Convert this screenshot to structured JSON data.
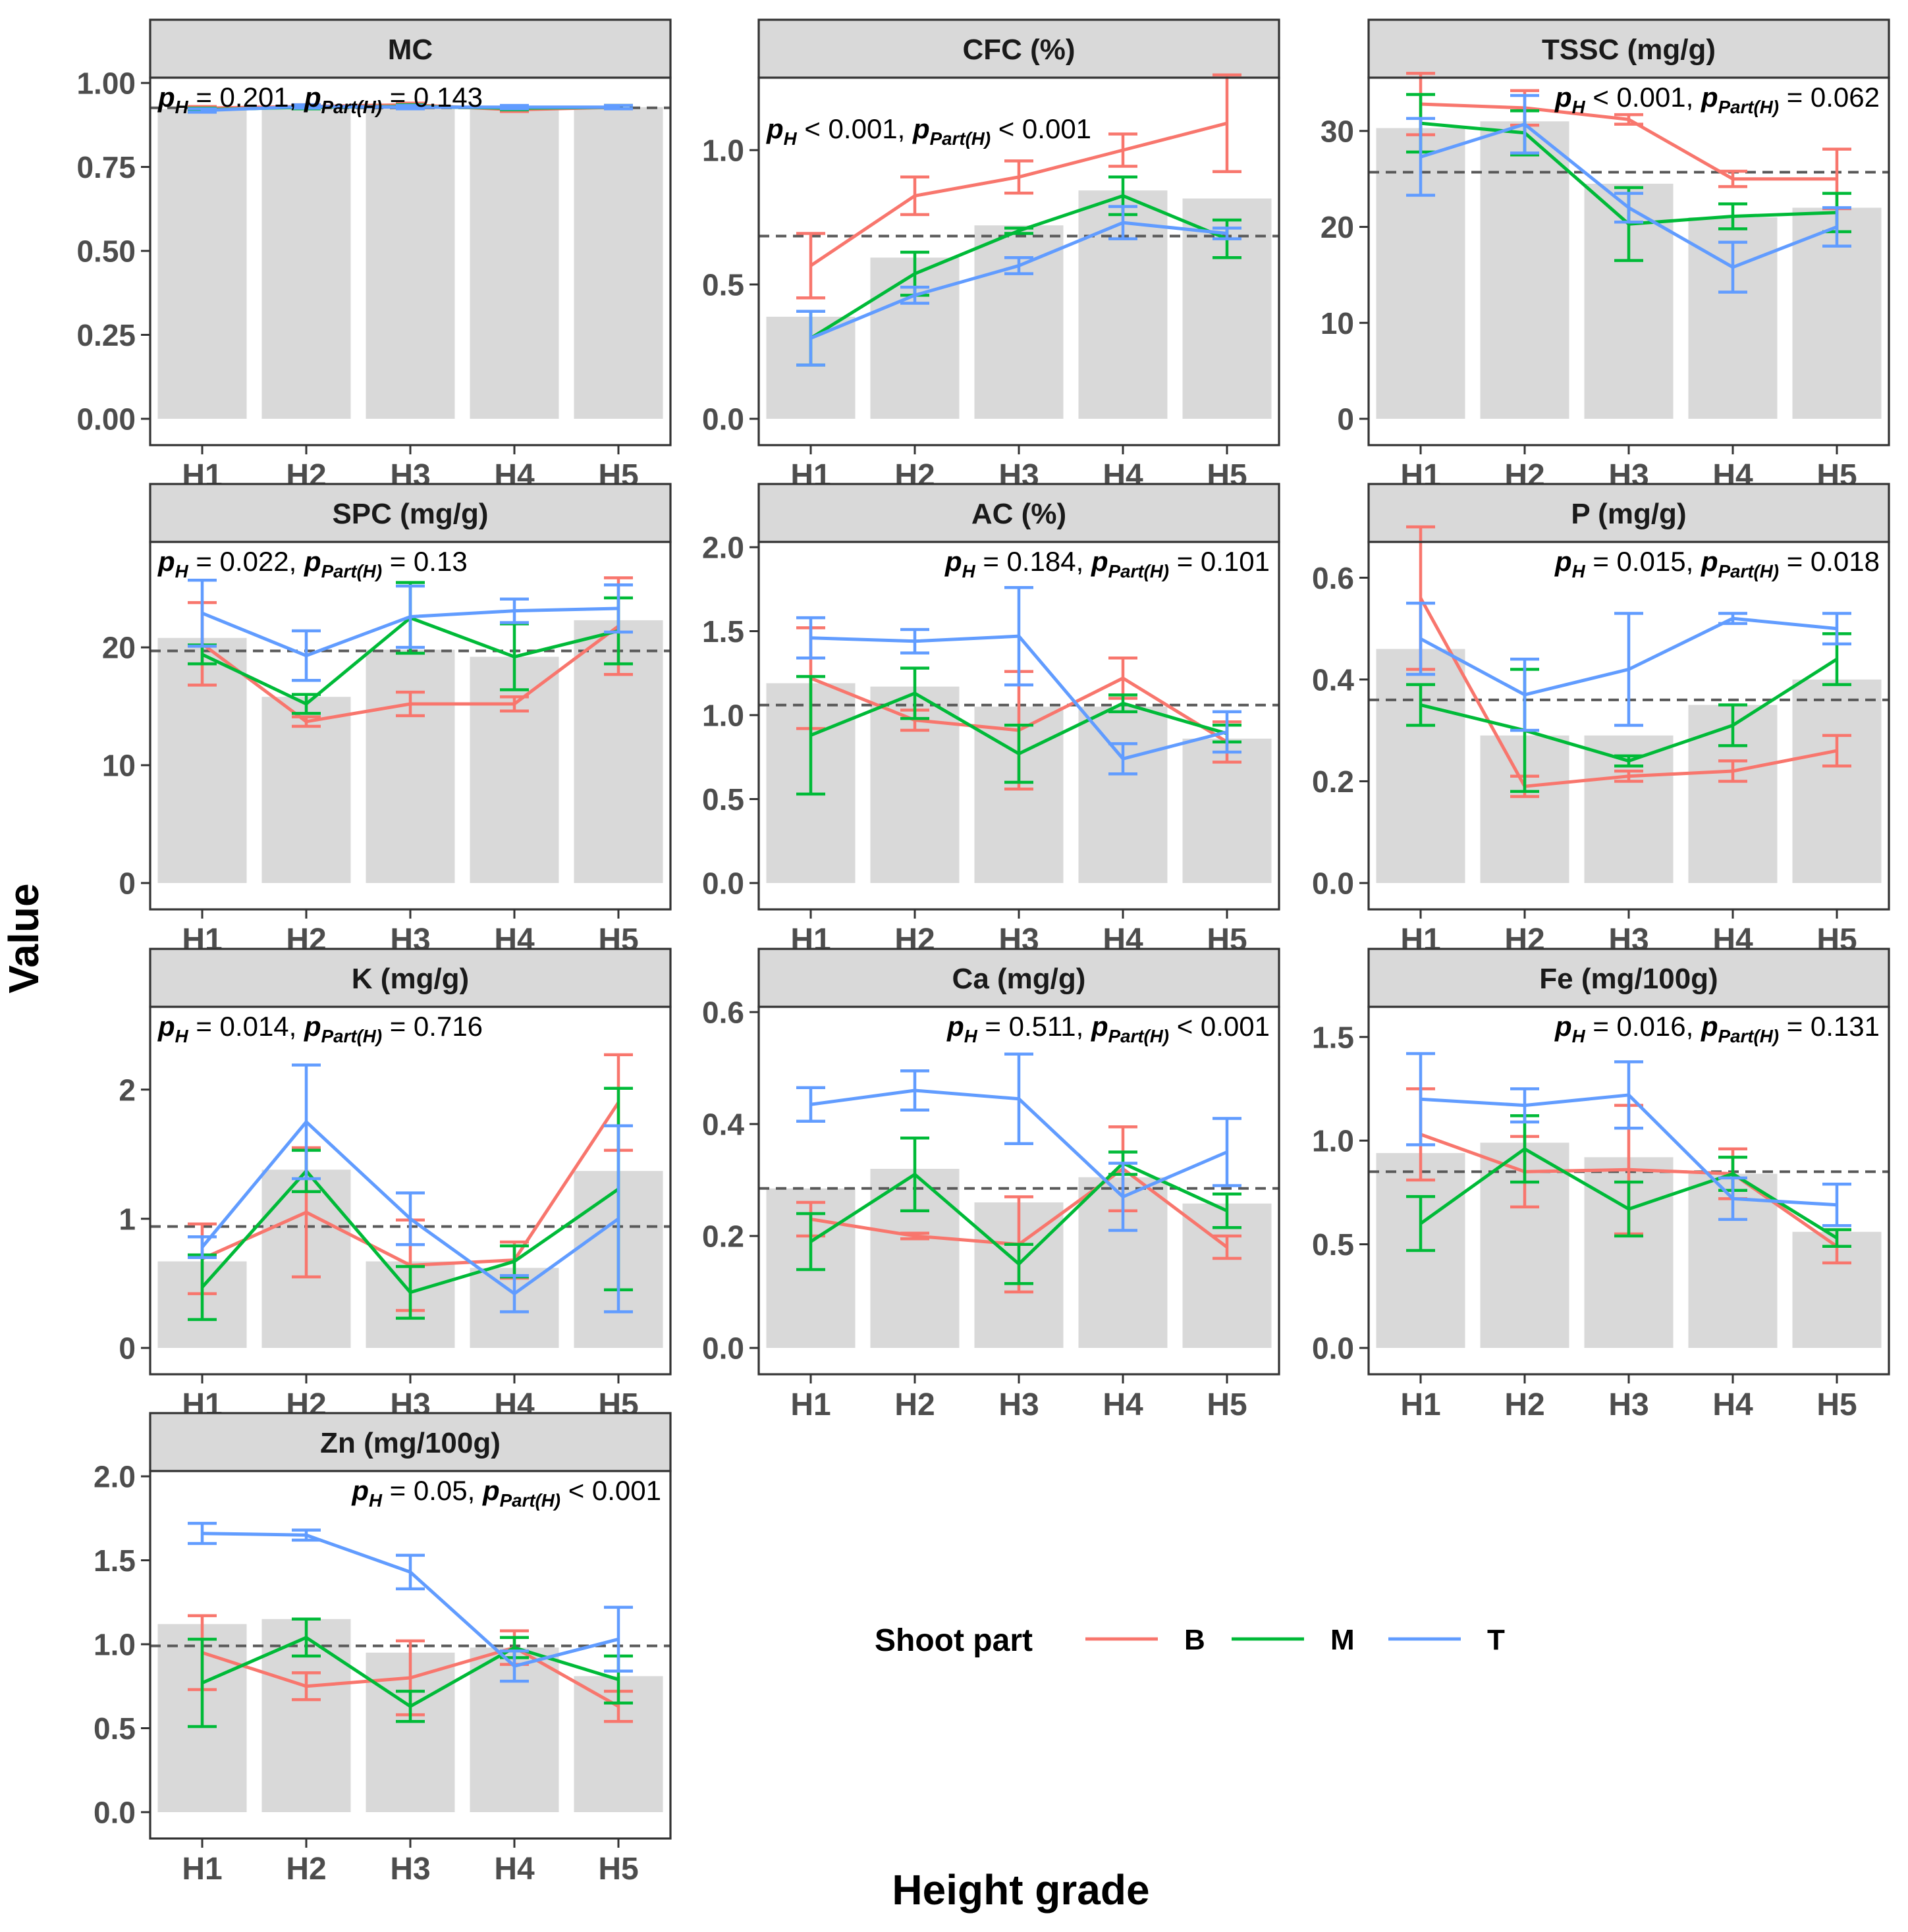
{
  "figure": {
    "xlabel": "Height grade",
    "ylabel": "Value"
  },
  "legend": {
    "title": "Shoot part",
    "entries": [
      {
        "label": "B",
        "color": "#F8766D"
      },
      {
        "label": "M",
        "color": "#00BA38"
      },
      {
        "label": "T",
        "color": "#619CFF"
      }
    ]
  },
  "colors": {
    "bar": "#D9D9D9",
    "strip_bg": "#D9D9D9",
    "mean_line": "#595959",
    "B": "#F8766D",
    "M": "#00BA38",
    "T": "#619CFF"
  },
  "chart_data": [
    {
      "type": "bar+line",
      "title": "MC",
      "categories": [
        "H1",
        "H2",
        "H3",
        "H4",
        "H5"
      ],
      "ylim": [
        0,
        1.0
      ],
      "yticks": [
        "0.00",
        "0.25",
        "0.50",
        "0.75",
        "1.00"
      ],
      "ytick_values": [
        0,
        0.25,
        0.5,
        0.75,
        1.0
      ],
      "bars": [
        0.922,
        0.928,
        0.93,
        0.922,
        0.928
      ],
      "mean_line": 0.926,
      "annotation": {
        "pH": "= 0.201",
        "pPart": "= 0.143",
        "position": "top-left"
      },
      "series": [
        {
          "name": "B",
          "values": [
            0.925,
            0.93,
            0.935,
            0.92,
            0.928
          ],
          "errors": [
            0.005,
            0.005,
            0.005,
            0.005,
            0.005
          ]
        },
        {
          "name": "M",
          "values": [
            0.92,
            0.928,
            0.93,
            0.925,
            0.928
          ],
          "errors": [
            0.005,
            0.005,
            0.005,
            0.005,
            0.005
          ]
        },
        {
          "name": "T",
          "values": [
            0.918,
            0.93,
            0.928,
            0.928,
            0.928
          ],
          "errors": [
            0.005,
            0.005,
            0.005,
            0.005,
            0.005
          ]
        }
      ]
    },
    {
      "type": "bar+line",
      "title": "CFC (%)",
      "categories": [
        "H1",
        "H2",
        "H3",
        "H4",
        "H5"
      ],
      "ylim": [
        0,
        1.25
      ],
      "yticks": [
        "0.0",
        "0.5",
        "1.0"
      ],
      "ytick_values": [
        0,
        0.5,
        1.0
      ],
      "bars": [
        0.38,
        0.6,
        0.72,
        0.85,
        0.82
      ],
      "mean_line": 0.68,
      "annotation": {
        "pH": "< 0.001",
        "pPart": "< 0.001",
        "position": "top-left"
      },
      "series": [
        {
          "name": "B",
          "values": [
            0.57,
            0.83,
            0.9,
            1.0,
            1.1
          ],
          "errors": [
            0.12,
            0.07,
            0.06,
            0.06,
            0.18
          ]
        },
        {
          "name": "M",
          "values": [
            0.3,
            0.54,
            0.7,
            0.83,
            0.67
          ],
          "errors": [
            0.1,
            0.08,
            0.01,
            0.07,
            0.07
          ]
        },
        {
          "name": "T",
          "values": [
            0.3,
            0.46,
            0.57,
            0.73,
            0.69
          ],
          "errors": [
            0.1,
            0.03,
            0.03,
            0.06,
            0.02
          ]
        }
      ]
    },
    {
      "type": "bar+line",
      "title": "TSSC (mg/g)",
      "categories": [
        "H1",
        "H2",
        "H3",
        "H4",
        "H5"
      ],
      "ylim": [
        0,
        35
      ],
      "yticks": [
        "0",
        "10",
        "20",
        "30"
      ],
      "ytick_values": [
        0,
        10,
        20,
        30
      ],
      "bars": [
        30.3,
        31.0,
        24.5,
        21.0,
        22.0
      ],
      "mean_line": 25.7,
      "annotation": {
        "pH": "< 0.001",
        "pPart": "= 0.062",
        "position": "top-right"
      },
      "series": [
        {
          "name": "B",
          "values": [
            32.8,
            32.4,
            31.2,
            25.0,
            25.0
          ],
          "errors": [
            3.2,
            1.8,
            0.5,
            0.8,
            3.1
          ]
        },
        {
          "name": "M",
          "values": [
            30.8,
            29.8,
            20.3,
            21.1,
            21.5
          ],
          "errors": [
            3.0,
            2.3,
            3.8,
            1.3,
            2.0
          ]
        },
        {
          "name": "T",
          "values": [
            27.3,
            30.7,
            22.0,
            15.8,
            20.0
          ],
          "errors": [
            4.0,
            3.0,
            1.5,
            2.6,
            2.0
          ]
        }
      ]
    },
    {
      "type": "bar+line",
      "title": "SPC (mg/g)",
      "categories": [
        "H1",
        "H2",
        "H3",
        "H4",
        "H5"
      ],
      "ylim": [
        0,
        28.5
      ],
      "yticks": [
        "0",
        "10",
        "20"
      ],
      "ytick_values": [
        0,
        10,
        20
      ],
      "bars": [
        20.8,
        15.8,
        19.8,
        19.2,
        22.3
      ],
      "mean_line": 19.7,
      "annotation": {
        "pH": "= 0.022",
        "pPart": "= 0.13",
        "position": "top-left"
      },
      "series": [
        {
          "name": "B",
          "values": [
            20.3,
            13.7,
            15.2,
            15.2,
            21.8
          ],
          "errors": [
            3.5,
            0.4,
            1.0,
            0.6,
            4.1
          ]
        },
        {
          "name": "M",
          "values": [
            19.4,
            15.2,
            22.5,
            19.2,
            21.4
          ],
          "errors": [
            0.8,
            0.8,
            3.0,
            2.8,
            2.8
          ]
        },
        {
          "name": "T",
          "values": [
            22.9,
            19.3,
            22.6,
            23.1,
            23.3
          ],
          "errors": [
            2.8,
            2.1,
            2.6,
            1.0,
            2.0
          ]
        }
      ]
    },
    {
      "type": "bar+line",
      "title": "AC (%)",
      "categories": [
        "H1",
        "H2",
        "H3",
        "H4",
        "H5"
      ],
      "ylim": [
        0,
        2.0
      ],
      "yticks": [
        "0.0",
        "0.5",
        "1.0",
        "1.5",
        "2.0"
      ],
      "ytick_values": [
        0,
        0.5,
        1.0,
        1.5,
        2.0
      ],
      "bars": [
        1.19,
        1.17,
        1.05,
        1.05,
        0.86
      ],
      "mean_line": 1.06,
      "annotation": {
        "pH": "= 0.184",
        "pPart": "= 0.101",
        "position": "top-right"
      },
      "series": [
        {
          "name": "B",
          "values": [
            1.22,
            0.97,
            0.91,
            1.22,
            0.84
          ],
          "errors": [
            0.3,
            0.06,
            0.35,
            0.12,
            0.12
          ]
        },
        {
          "name": "M",
          "values": [
            0.88,
            1.13,
            0.77,
            1.07,
            0.89
          ],
          "errors": [
            0.35,
            0.15,
            0.17,
            0.05,
            0.05
          ]
        },
        {
          "name": "T",
          "values": [
            1.46,
            1.44,
            1.47,
            0.74,
            0.9
          ],
          "errors": [
            0.12,
            0.07,
            0.29,
            0.09,
            0.12
          ]
        }
      ]
    },
    {
      "type": "bar+line",
      "title": "P (mg/g)",
      "categories": [
        "H1",
        "H2",
        "H3",
        "H4",
        "H5"
      ],
      "ylim": [
        0,
        0.66
      ],
      "yticks": [
        "0.0",
        "0.2",
        "0.4",
        "0.6"
      ],
      "ytick_values": [
        0,
        0.2,
        0.4,
        0.6
      ],
      "bars": [
        0.46,
        0.29,
        0.29,
        0.35,
        0.4
      ],
      "mean_line": 0.36,
      "annotation": {
        "pH": "= 0.015",
        "pPart": "= 0.018",
        "position": "top-right"
      },
      "series": [
        {
          "name": "B",
          "values": [
            0.56,
            0.19,
            0.21,
            0.22,
            0.26
          ],
          "errors": [
            0.14,
            0.02,
            0.01,
            0.02,
            0.03
          ]
        },
        {
          "name": "M",
          "values": [
            0.35,
            0.3,
            0.24,
            0.31,
            0.44
          ],
          "errors": [
            0.04,
            0.12,
            0.01,
            0.04,
            0.05
          ]
        },
        {
          "name": "T",
          "values": [
            0.48,
            0.37,
            0.42,
            0.52,
            0.5
          ],
          "errors": [
            0.07,
            0.07,
            0.11,
            0.01,
            0.03
          ]
        }
      ]
    },
    {
      "type": "bar+line",
      "title": "K (mg/g)",
      "categories": [
        "H1",
        "H2",
        "H3",
        "H4",
        "H5"
      ],
      "ylim": [
        0,
        2.6
      ],
      "yticks": [
        "0",
        "1",
        "2"
      ],
      "ytick_values": [
        0,
        1,
        2
      ],
      "bars": [
        0.67,
        1.38,
        0.67,
        0.62,
        1.37
      ],
      "mean_line": 0.94,
      "annotation": {
        "pH": "= 0.014",
        "pPart": "= 0.716",
        "position": "top-left"
      },
      "series": [
        {
          "name": "B",
          "values": [
            0.69,
            1.05,
            0.64,
            0.68,
            1.9
          ],
          "errors": [
            0.27,
            0.5,
            0.35,
            0.14,
            0.37
          ]
        },
        {
          "name": "M",
          "values": [
            0.47,
            1.37,
            0.43,
            0.67,
            1.23
          ],
          "errors": [
            0.25,
            0.16,
            0.2,
            0.12,
            0.78
          ]
        },
        {
          "name": "T",
          "values": [
            0.78,
            1.75,
            1.0,
            0.42,
            1.0
          ],
          "errors": [
            0.08,
            0.44,
            0.2,
            0.14,
            0.72
          ]
        }
      ]
    },
    {
      "type": "bar+line",
      "title": "Ca (mg/g)",
      "categories": [
        "H1",
        "H2",
        "H3",
        "H4",
        "H5"
      ],
      "ylim": [
        0,
        0.6
      ],
      "yticks": [
        "0.0",
        "0.2",
        "0.4",
        "0.6"
      ],
      "ytick_values": [
        0,
        0.2,
        0.4,
        0.6
      ],
      "bars": [
        0.285,
        0.32,
        0.26,
        0.305,
        0.258
      ],
      "mean_line": 0.285,
      "annotation": {
        "pH": "= 0.511",
        "pPart": "< 0.001",
        "position": "top-right"
      },
      "series": [
        {
          "name": "B",
          "values": [
            0.23,
            0.2,
            0.185,
            0.32,
            0.18
          ],
          "errors": [
            0.03,
            0.005,
            0.085,
            0.075,
            0.02
          ]
        },
        {
          "name": "M",
          "values": [
            0.19,
            0.31,
            0.15,
            0.33,
            0.245
          ],
          "errors": [
            0.05,
            0.065,
            0.035,
            0.02,
            0.03
          ]
        },
        {
          "name": "T",
          "values": [
            0.435,
            0.46,
            0.445,
            0.27,
            0.35
          ],
          "errors": [
            0.03,
            0.035,
            0.08,
            0.06,
            0.06
          ]
        }
      ]
    },
    {
      "type": "bar+line",
      "title": "Fe (mg/100g)",
      "categories": [
        "H1",
        "H2",
        "H3",
        "H4",
        "H5"
      ],
      "ylim": [
        0,
        1.62
      ],
      "yticks": [
        "0.0",
        "0.5",
        "1.0",
        "1.5"
      ],
      "ytick_values": [
        0,
        0.5,
        1.0,
        1.5
      ],
      "bars": [
        0.94,
        0.99,
        0.92,
        0.84,
        0.56
      ],
      "mean_line": 0.85,
      "annotation": {
        "pH": "= 0.016",
        "pPart": "= 0.131",
        "position": "top-right"
      },
      "series": [
        {
          "name": "B",
          "values": [
            1.03,
            0.85,
            0.86,
            0.84,
            0.49
          ],
          "errors": [
            0.22,
            0.17,
            0.31,
            0.12,
            0.08
          ]
        },
        {
          "name": "M",
          "values": [
            0.6,
            0.96,
            0.67,
            0.84,
            0.53
          ],
          "errors": [
            0.13,
            0.16,
            0.13,
            0.08,
            0.04
          ]
        },
        {
          "name": "T",
          "values": [
            1.2,
            1.17,
            1.22,
            0.72,
            0.69
          ],
          "errors": [
            0.22,
            0.08,
            0.16,
            0.1,
            0.1
          ]
        }
      ]
    },
    {
      "type": "bar+line",
      "title": "Zn (mg/100g)",
      "categories": [
        "H1",
        "H2",
        "H3",
        "H4",
        "H5"
      ],
      "ylim": [
        0,
        2.0
      ],
      "yticks": [
        "0.0",
        "0.5",
        "1.0",
        "1.5",
        "2.0"
      ],
      "ytick_values": [
        0,
        0.5,
        1.0,
        1.5,
        2.0
      ],
      "bars": [
        1.12,
        1.15,
        0.95,
        0.98,
        0.81
      ],
      "mean_line": 0.99,
      "annotation": {
        "pH": "= 0.05",
        "pPart": "< 0.001",
        "position": "top-right"
      },
      "series": [
        {
          "name": "B",
          "values": [
            0.95,
            0.75,
            0.8,
            0.98,
            0.63
          ],
          "errors": [
            0.22,
            0.08,
            0.22,
            0.1,
            0.09
          ]
        },
        {
          "name": "M",
          "values": [
            0.77,
            1.04,
            0.63,
            0.98,
            0.79
          ],
          "errors": [
            0.26,
            0.11,
            0.09,
            0.06,
            0.14
          ]
        },
        {
          "name": "T",
          "values": [
            1.66,
            1.65,
            1.43,
            0.87,
            1.03
          ],
          "errors": [
            0.06,
            0.03,
            0.1,
            0.09,
            0.19
          ]
        }
      ]
    }
  ]
}
